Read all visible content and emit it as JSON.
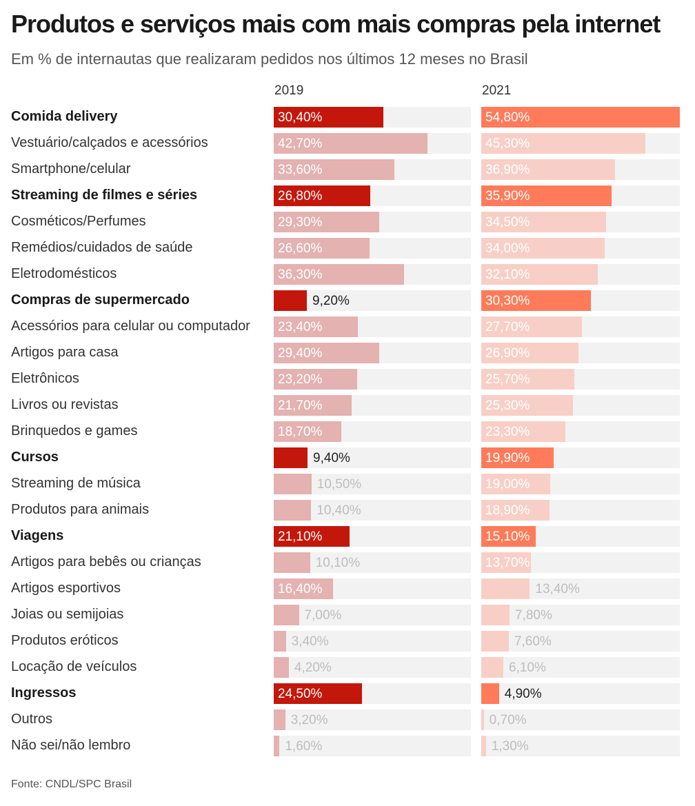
{
  "title": "Produtos e serviços mais com mais compras pela internet",
  "subtitle": "Em % de internautas que realizaram pedidos nos últimos 12 meses no Brasil",
  "source": "Fonte: CNDL/SPC Brasil",
  "colors": {
    "highlight_2019": "#c4170c",
    "muted_2019": "#e3b2b1",
    "highlight_2021": "#ff7b5a",
    "muted_2021": "#f8cfc6",
    "track": "#f2f2f2",
    "label_inside_highlight": "#ffffff",
    "label_inside_muted": "#ffffff",
    "label_outside_highlight": "#222222",
    "label_outside_muted": "#bdbdbd"
  },
  "chart_data": {
    "type": "bar",
    "orientation": "horizontal",
    "xlim": [
      0,
      54.8
    ],
    "series": [
      {
        "name": "2019",
        "values": [
          30.4,
          42.7,
          33.6,
          26.8,
          29.3,
          26.6,
          36.3,
          9.2,
          23.4,
          29.4,
          23.2,
          21.7,
          18.7,
          9.4,
          10.5,
          10.4,
          21.1,
          10.1,
          16.4,
          7.0,
          3.4,
          4.2,
          24.5,
          3.2,
          1.6
        ],
        "labels": [
          "30,40%",
          "42,70%",
          "33,60%",
          "26,80%",
          "29,30%",
          "26,60%",
          "36,30%",
          "9,20%",
          "23,40%",
          "29,40%",
          "23,20%",
          "21,70%",
          "18,70%",
          "9,40%",
          "10,50%",
          "10,40%",
          "21,10%",
          "10,10%",
          "16,40%",
          "7,00%",
          "3,40%",
          "4,20%",
          "24,50%",
          "3,20%",
          "1,60%"
        ]
      },
      {
        "name": "2021",
        "values": [
          54.8,
          45.3,
          36.9,
          35.9,
          34.5,
          34.0,
          32.1,
          30.3,
          27.7,
          26.9,
          25.7,
          25.3,
          23.3,
          19.9,
          19.0,
          18.9,
          15.1,
          13.7,
          13.4,
          7.8,
          7.6,
          6.1,
          4.9,
          0.7,
          1.3
        ],
        "labels": [
          "54,80%",
          "45,30%",
          "36,90%",
          "35,90%",
          "34,50%",
          "34,00%",
          "32,10%",
          "30,30%",
          "27,70%",
          "26,90%",
          "25,70%",
          "25,30%",
          "23,30%",
          "19,90%",
          "19,00%",
          "18,90%",
          "15,10%",
          "13,70%",
          "13,40%",
          "7,80%",
          "7,60%",
          "6,10%",
          "4,90%",
          "0,70%",
          "1,30%"
        ]
      }
    ],
    "categories": [
      "Comida delivery",
      "Vestuário/calçados e acessórios",
      "Smartphone/celular",
      "Streaming de filmes e séries",
      "Cosméticos/Perfumes",
      "Remédios/cuidados de saúde",
      "Eletrodomésticos",
      "Compras de supermercado",
      "Acessórios para celular ou computador",
      "Artigos para casa",
      "Eletrônicos",
      "Livros ou revistas",
      "Brinquedos e games",
      "Cursos",
      "Streaming de música",
      "Produtos para animais",
      "Viagens",
      "Artigos para bebês ou crianças",
      "Artigos esportivos",
      "Joias ou semijoias",
      "Produtos eróticos",
      "Locação de veículos",
      "Ingressos",
      "Outros",
      "Não sei/não lembro"
    ],
    "highlighted": [
      true,
      false,
      false,
      true,
      false,
      false,
      false,
      true,
      false,
      false,
      false,
      false,
      false,
      true,
      false,
      false,
      true,
      false,
      false,
      false,
      false,
      false,
      true,
      false,
      false
    ]
  }
}
